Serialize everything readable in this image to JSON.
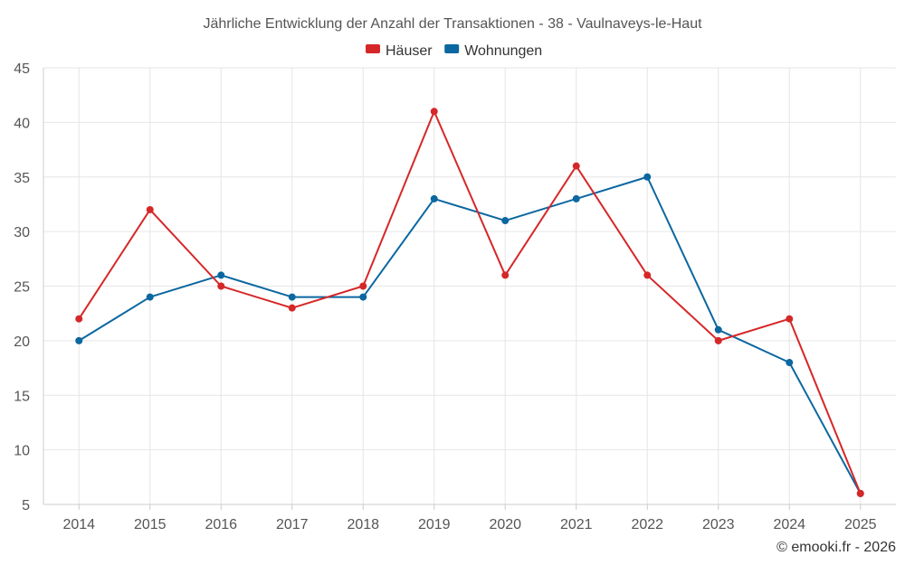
{
  "chart_data": {
    "type": "line",
    "title": "Jährliche Entwicklung der Anzahl der Transaktionen - 38 - Vaulnaveys-le-Haut",
    "categories": [
      "2014",
      "2015",
      "2016",
      "2017",
      "2018",
      "2019",
      "2020",
      "2021",
      "2022",
      "2023",
      "2024",
      "2025"
    ],
    "series": [
      {
        "name": "Häuser",
        "color": "#d62728",
        "values": [
          22,
          32,
          25,
          23,
          25,
          41,
          26,
          36,
          26,
          20,
          22,
          6
        ]
      },
      {
        "name": "Wohnungen",
        "color": "#0b67a0",
        "values": [
          20,
          24,
          26,
          24,
          24,
          33,
          31,
          33,
          35,
          21,
          18,
          6
        ]
      }
    ],
    "ylim": [
      5,
      45
    ],
    "yticks": [
      5,
      10,
      15,
      20,
      25,
      30,
      35,
      40,
      45
    ],
    "xlabel": "",
    "ylabel": "",
    "grid": true,
    "legend": "top-center"
  },
  "credit": "© emooki.fr - 2026"
}
